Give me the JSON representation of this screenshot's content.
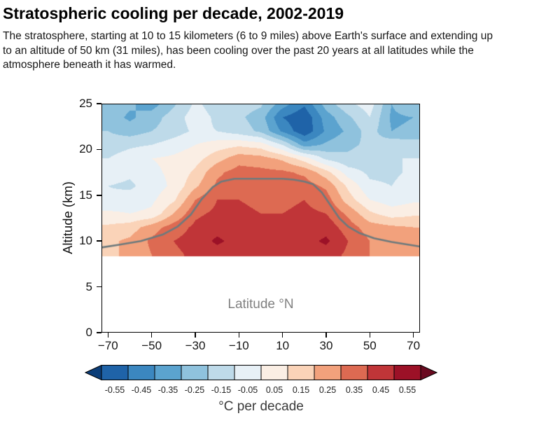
{
  "header": {
    "title": "Stratospheric cooling per decade, 2002-2019",
    "description": "The stratosphere, starting at 10 to 15 kilometers (6 to 9 miles) above Earth's surface and extending up to an altitude of 50 km (31 miles), has been cooling over the past 20 years at all latitudes while the atmosphere beneath it has warmed."
  },
  "chart_data": {
    "type": "heatmap",
    "title": "Stratospheric cooling per decade, 2002-2019",
    "xlabel": "Latitude °N",
    "ylabel": "Altitude (km)",
    "inner_label": "Latitude °N",
    "units": "°C per decade",
    "xlim": [
      -73,
      73
    ],
    "ylim": [
      0,
      25
    ],
    "x_ticks": [
      -70,
      -50,
      -30,
      -10,
      10,
      30,
      50,
      70
    ],
    "y_ticks": [
      0,
      5,
      10,
      15,
      20,
      25
    ],
    "data_floor_km": 8.3,
    "lat": [
      -70,
      -60,
      -50,
      -40,
      -30,
      -20,
      -10,
      0,
      10,
      20,
      30,
      40,
      50,
      60,
      70
    ],
    "alt": [
      8.5,
      10,
      11.5,
      13,
      14.5,
      16,
      17.5,
      19,
      20.5,
      22,
      23.5,
      25
    ],
    "values": [
      [
        0.18,
        0.22,
        0.3,
        0.38,
        0.42,
        0.45,
        0.45,
        0.42,
        0.42,
        0.45,
        0.45,
        0.38,
        0.3,
        0.28,
        0.25
      ],
      [
        0.18,
        0.22,
        0.32,
        0.4,
        0.44,
        0.52,
        0.46,
        0.42,
        0.42,
        0.46,
        0.52,
        0.4,
        0.3,
        0.28,
        0.25
      ],
      [
        0.12,
        0.15,
        0.25,
        0.35,
        0.42,
        0.46,
        0.44,
        0.42,
        0.42,
        0.44,
        0.46,
        0.35,
        0.25,
        0.22,
        0.2
      ],
      [
        0.02,
        0.0,
        0.02,
        0.2,
        0.38,
        0.42,
        0.42,
        0.4,
        0.4,
        0.42,
        0.4,
        0.28,
        0.12,
        0.05,
        0.08
      ],
      [
        -0.08,
        -0.05,
        -0.02,
        0.08,
        0.3,
        0.4,
        0.4,
        0.38,
        0.38,
        0.4,
        0.35,
        0.15,
        0.0,
        -0.05,
        -0.02
      ],
      [
        -0.1,
        -0.12,
        -0.05,
        0.02,
        0.18,
        0.32,
        0.35,
        0.34,
        0.34,
        0.35,
        0.28,
        0.08,
        -0.08,
        -0.1,
        -0.05
      ],
      [
        -0.05,
        -0.08,
        -0.02,
        0.02,
        0.12,
        0.28,
        0.34,
        0.33,
        0.32,
        0.28,
        0.14,
        -0.05,
        -0.12,
        -0.12,
        -0.08
      ],
      [
        -0.1,
        -0.05,
        0.0,
        0.02,
        0.06,
        0.16,
        0.26,
        0.24,
        0.18,
        0.05,
        -0.12,
        -0.18,
        -0.15,
        -0.1,
        -0.1
      ],
      [
        -0.15,
        -0.12,
        -0.1,
        -0.05,
        0.0,
        0.05,
        0.08,
        0.05,
        -0.1,
        -0.35,
        -0.28,
        -0.22,
        -0.18,
        -0.12,
        -0.15
      ],
      [
        -0.2,
        -0.25,
        -0.2,
        -0.15,
        -0.08,
        -0.1,
        -0.15,
        -0.22,
        -0.42,
        -0.58,
        -0.38,
        -0.28,
        -0.15,
        -0.3,
        -0.28
      ],
      [
        -0.25,
        -0.32,
        -0.25,
        -0.15,
        -0.05,
        -0.12,
        -0.18,
        -0.25,
        -0.5,
        -0.58,
        -0.35,
        -0.22,
        -0.1,
        -0.32,
        -0.3
      ],
      [
        -0.2,
        -0.28,
        -0.35,
        -0.22,
        -0.08,
        -0.15,
        -0.15,
        -0.18,
        -0.35,
        -0.48,
        -0.25,
        -0.12,
        -0.05,
        -0.3,
        -0.2
      ]
    ],
    "tropopause_line": {
      "color": "#6d7a7d",
      "lat": [
        -73,
        -65,
        -55,
        -45,
        -38,
        -32,
        -27,
        -22,
        -18,
        -12,
        0,
        10,
        15,
        20,
        24,
        28,
        32,
        36,
        40,
        45,
        52,
        60,
        73
      ],
      "alt": [
        9.3,
        9.6,
        10.0,
        10.7,
        11.6,
        12.9,
        14.6,
        15.9,
        16.5,
        16.8,
        16.8,
        16.8,
        16.7,
        16.5,
        16.2,
        15.3,
        13.9,
        12.5,
        11.6,
        10.9,
        10.3,
        9.9,
        9.4
      ]
    },
    "colorbar": {
      "label": "°C per decade",
      "bin_edges": [
        -0.6,
        -0.5,
        -0.4,
        -0.3,
        -0.2,
        -0.1,
        0.0,
        0.1,
        0.2,
        0.3,
        0.4,
        0.5,
        0.6
      ],
      "tick_labels": [
        "-0.55",
        "-0.45",
        "-0.35",
        "-0.25",
        "-0.15",
        "-0.05",
        "0.05",
        "0.15",
        "0.25",
        "0.35",
        "0.45",
        "0.55"
      ],
      "colors": [
        "#1f63a8",
        "#3b87c0",
        "#5ba3cf",
        "#8fc2dd",
        "#bedae9",
        "#e7f0f6",
        "#faeee4",
        "#fad3b8",
        "#f2a17c",
        "#dd6a52",
        "#c03538",
        "#9c1127"
      ],
      "under_color": "#0b3d78",
      "over_color": "#6a0a20"
    }
  }
}
